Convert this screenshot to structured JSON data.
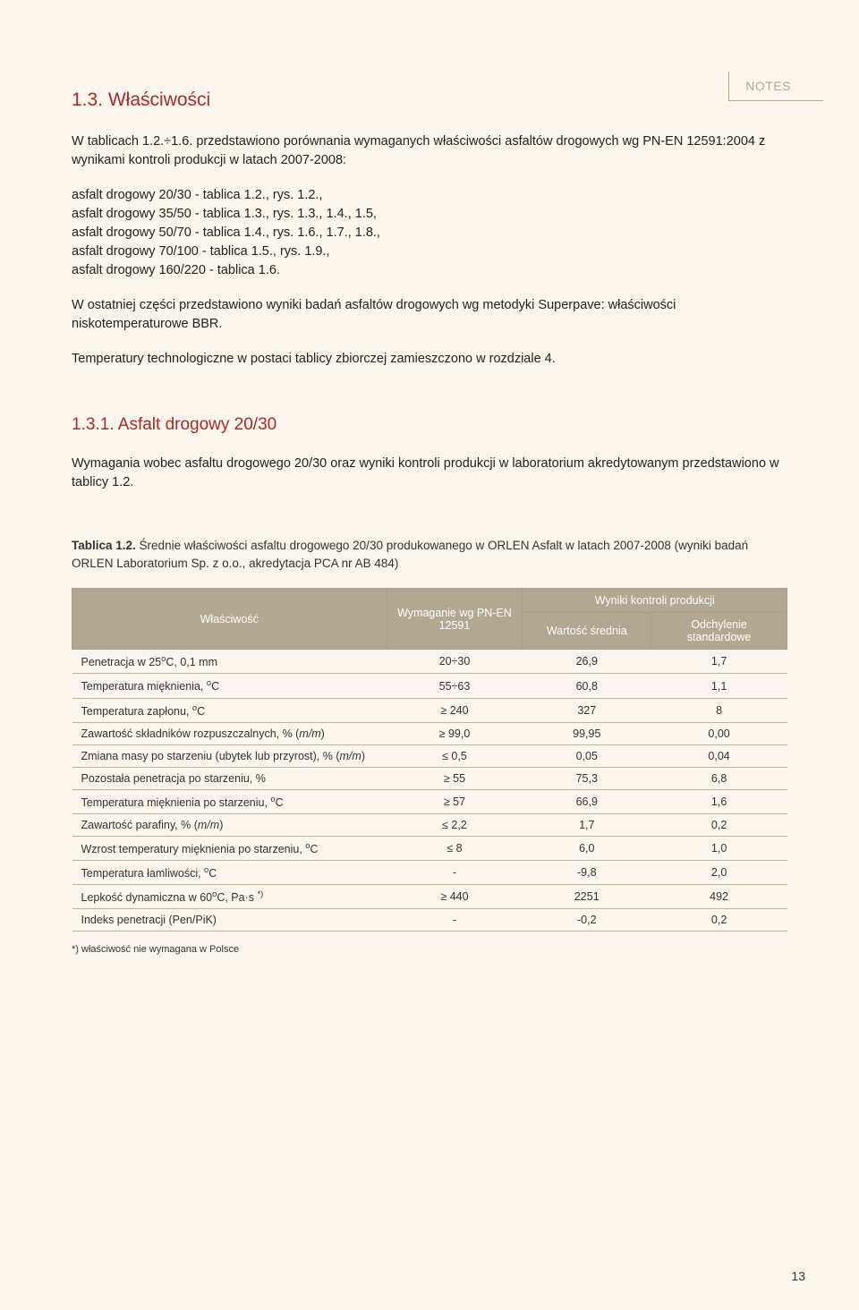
{
  "notes_label": "NOTES",
  "section_title": "1.3. Właściwości",
  "intro_1": "W tablicach 1.2.÷1.6. przedstawiono porównania wymaganych właściwości asfaltów drogowych wg PN-EN 12591:2004 z wynikami kontroli produkcji w latach 2007-2008:",
  "list": [
    "asfalt drogowy 20/30 - tablica 1.2., rys. 1.2.,",
    "asfalt drogowy 35/50 - tablica 1.3., rys. 1.3., 1.4., 1.5,",
    "asfalt drogowy 50/70 - tablica 1.4., rys. 1.6., 1.7., 1.8.,",
    "asfalt drogowy 70/100 - tablica 1.5., rys. 1.9.,",
    "asfalt drogowy 160/220 - tablica 1.6."
  ],
  "para_superpave": "W ostatniej części przedstawiono wyniki badań asfaltów drogowych wg metodyki Superpave: właściwości niskotemperaturowe BBR.",
  "para_temp": "Temperatury technologiczne w postaci tablicy zbiorczej zamieszczono w rozdziale 4.",
  "subsection_title": "1.3.1. Asfalt drogowy 20/30",
  "subsection_text": "Wymagania wobec asfaltu drogowego 20/30 oraz wyniki kontroli produkcji w laboratorium akredytowanym przedstawiono w tablicy 1.2.",
  "table_caption_bold": "Tablica 1.2.",
  "table_caption_rest": " Średnie właściwości asfaltu drogowego 20/30 produkowanego w ORLEN Asfalt w latach 2007-2008 (wyniki badań ORLEN Laboratorium Sp. z o.o., akredytacja PCA nr AB 484)",
  "table": {
    "header_bg": "#b0a890",
    "columns": {
      "property": "Właściwość",
      "requirement": "Wymaganie wg PN-EN 12591",
      "results_group": "Wyniki kontroli produkcji",
      "mean": "Wartość średnia",
      "stddev": "Odchylenie standardowe"
    },
    "rows": [
      {
        "p": "Penetracja w 25°C, 0,1 mm",
        "r": "20÷30",
        "m": "26,9",
        "s": "1,7"
      },
      {
        "p": "Temperatura mięknienia, °C",
        "r": "55÷63",
        "m": "60,8",
        "s": "1,1"
      },
      {
        "p": "Temperatura zapłonu, °C",
        "r": "≥ 240",
        "m": "327",
        "s": "8"
      },
      {
        "p": "Zawartość składników rozpuszczalnych, % (m/m)",
        "r": "≥ 99,0",
        "m": "99,95",
        "s": "0,00",
        "ital": true
      },
      {
        "p": "Zmiana masy po starzeniu (ubytek lub przyrost), % (m/m)",
        "r": "≤ 0,5",
        "m": "0,05",
        "s": "0,04",
        "ital": true
      },
      {
        "p": "Pozostała penetracja po starzeniu, %",
        "r": "≥ 55",
        "m": "75,3",
        "s": "6,8"
      },
      {
        "p": "Temperatura mięknienia po starzeniu, °C",
        "r": "≥ 57",
        "m": "66,9",
        "s": "1,6"
      },
      {
        "p": "Zawartość parafiny, % (m/m)",
        "r": "≤ 2,2",
        "m": "1,7",
        "s": "0,2",
        "ital": true
      },
      {
        "p": "Wzrost temperatury mięknienia po starzeniu, °C",
        "r": "≤ 8",
        "m": "6,0",
        "s": "1,0"
      },
      {
        "p": "Temperatura łamliwości, °C",
        "r": "-",
        "m": "-9,8",
        "s": "2,0"
      },
      {
        "p": "Lepkość dynamiczna w 60°C, Pa·s *)",
        "r": "≥ 440",
        "m": "2251",
        "s": "492",
        "sup": true
      },
      {
        "p": "Indeks penetracji (Pen/PiK)",
        "r": "-",
        "m": "-0,2",
        "s": "0,2"
      }
    ]
  },
  "footnote": "*) właściwość nie wymagana w Polsce",
  "page_number": "13"
}
